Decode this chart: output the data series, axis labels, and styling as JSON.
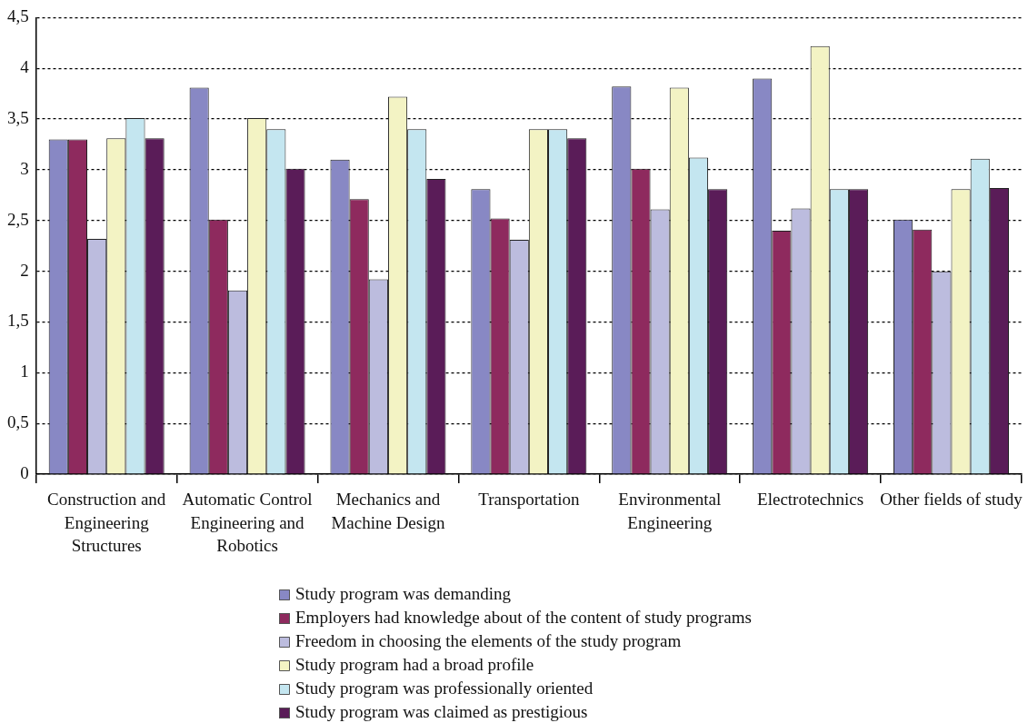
{
  "chart_data": {
    "type": "bar",
    "categories": [
      "Construction and Engineering Structures",
      "Automatic Control Engineering and Robotics",
      "Mechanics and Machine Design",
      "Transportation",
      "Environmental Engineering",
      "Electrotechnics",
      "Other fields of study"
    ],
    "series": [
      {
        "name": "Study program was demanding",
        "color": "#8888c4",
        "values": [
          3.3,
          3.81,
          3.1,
          2.81,
          3.82,
          3.9,
          2.51
        ]
      },
      {
        "name": "Employers had knowledge about of the content of study programs",
        "color": "#8e2a5e",
        "values": [
          3.3,
          2.51,
          2.71,
          2.52,
          3.01,
          2.4,
          2.41
        ]
      },
      {
        "name": "Freedom in choosing the elements of the study program",
        "color": "#bcbcde",
        "values": [
          2.32,
          1.81,
          1.92,
          2.31,
          2.61,
          2.62,
          2.0
        ]
      },
      {
        "name": "Study program had a broad profile",
        "color": "#f3f3c4",
        "values": [
          3.31,
          3.51,
          3.72,
          3.4,
          3.81,
          4.22,
          2.81
        ]
      },
      {
        "name": "Study program was professionally oriented",
        "color": "#c4e6f0",
        "values": [
          3.51,
          3.4,
          3.4,
          3.4,
          3.12,
          2.81,
          3.11
        ]
      },
      {
        "name": "Study program was claimed as prestigious",
        "color": "#5a1c58",
        "values": [
          3.31,
          3.01,
          2.91,
          3.31,
          2.81,
          2.81,
          2.82
        ]
      }
    ],
    "ylim": [
      0,
      4.5
    ],
    "yticks": [
      0,
      {
        "value": 0.5,
        "label": "0,5"
      },
      1,
      {
        "value": 1.5,
        "label": "1,5"
      },
      2,
      {
        "value": 2.5,
        "label": "2,5"
      },
      3,
      {
        "value": 3.5,
        "label": "3,5"
      },
      4,
      {
        "value": 4.5,
        "label": "4,5"
      }
    ],
    "grid": "y",
    "legend": "bottom"
  }
}
